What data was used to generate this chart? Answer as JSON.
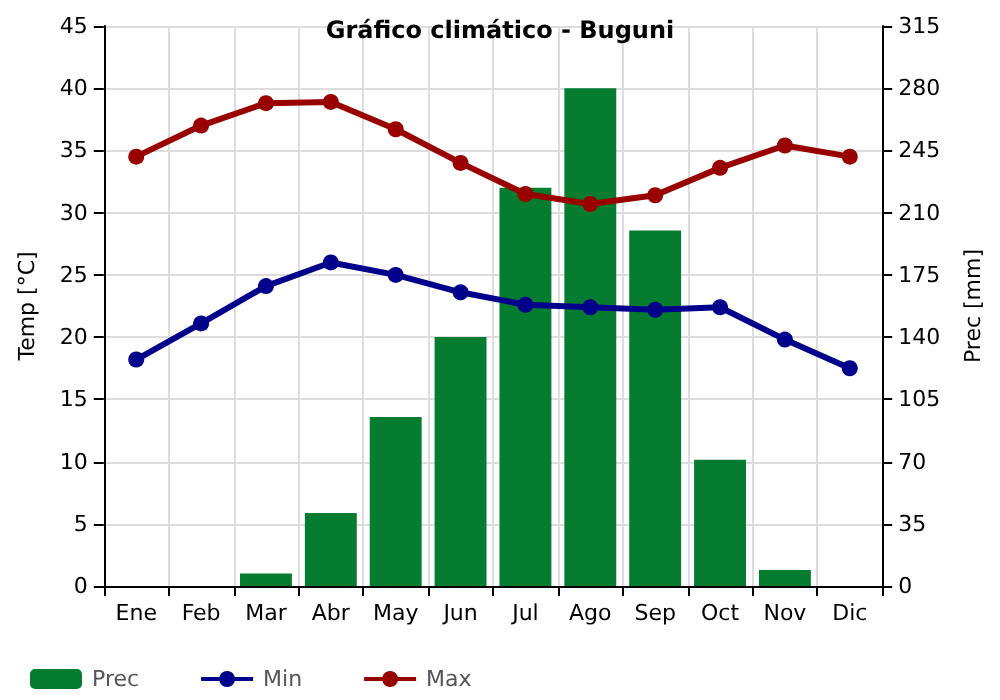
{
  "chart_data": {
    "type": "line",
    "title": "Gráfico climático - Buguni",
    "ylabel": "Temp [°C]",
    "y2label": "Prec [mm]",
    "categories": [
      "Ene",
      "Feb",
      "Mar",
      "Abr",
      "May",
      "Jun",
      "Jul",
      "Ago",
      "Sep",
      "Oct",
      "Nov",
      "Dic"
    ],
    "series": [
      {
        "name": "Prec",
        "type": "bar",
        "axis": "y2",
        "color": "#067c30",
        "values": [
          0,
          0,
          7,
          41,
          95,
          140,
          224,
          280,
          200,
          71,
          9,
          0
        ]
      },
      {
        "name": "Min",
        "color": "#00008b",
        "values": [
          18.2,
          21.1,
          24.1,
          26.0,
          25.0,
          23.6,
          22.6,
          22.4,
          22.2,
          22.4,
          19.8,
          17.5
        ]
      },
      {
        "name": "Max",
        "color": "#990000",
        "values": [
          34.5,
          37.0,
          38.8,
          38.9,
          36.7,
          34.0,
          31.5,
          30.7,
          31.4,
          33.6,
          35.4,
          34.5
        ]
      }
    ],
    "ylim": [
      0,
      45
    ],
    "yticks": [
      0,
      5,
      10,
      15,
      20,
      25,
      30,
      35,
      40,
      45
    ],
    "y2lim": [
      0,
      315
    ],
    "y2ticks": [
      0,
      35,
      70,
      105,
      140,
      175,
      210,
      245,
      280,
      315
    ],
    "grid": true,
    "legend": "bottom",
    "marker": "circle",
    "line_style": "solid"
  }
}
